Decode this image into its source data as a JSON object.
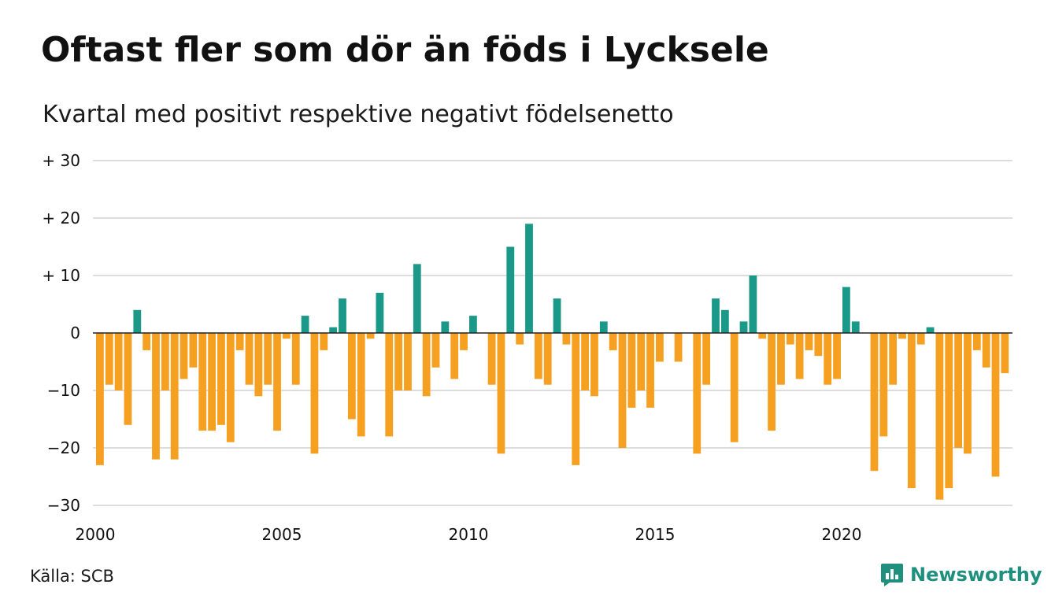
{
  "title": "Oftast fler som dör än föds i Lycksele",
  "subtitle": "Kvartal med positivt respektive negativt födelsenetto",
  "source": "Källa: SCB",
  "brand": {
    "name": "Newsworthy",
    "icon": "newsworthy-logo-icon",
    "color": "#1f8f7e"
  },
  "colors": {
    "positive": "#1a9988",
    "negative": "#f5a020",
    "grid": "#dddddd"
  },
  "chart_data": {
    "type": "bar",
    "x_start": 2000,
    "x_end": 2024.75,
    "quarters_per_year": 4,
    "values": [
      -23,
      -9,
      -10,
      -16,
      4,
      -3,
      -22,
      -10,
      -22,
      -8,
      -6,
      -17,
      -17,
      -16,
      -19,
      -3,
      -9,
      -11,
      -9,
      -17,
      -1,
      -9,
      3,
      -21,
      -3,
      1,
      6,
      -15,
      -18,
      -1,
      7,
      -18,
      -10,
      -10,
      12,
      -11,
      -6,
      2,
      -8,
      -3,
      3,
      0,
      -9,
      -21,
      15,
      -2,
      19,
      -8,
      -9,
      6,
      -2,
      -23,
      -10,
      -11,
      2,
      -3,
      -20,
      -13,
      -10,
      -13,
      -5,
      0,
      -5,
      0,
      -21,
      -9,
      6,
      4,
      -19,
      2,
      10,
      -1,
      -17,
      -9,
      -2,
      -8,
      -3,
      -4,
      -9,
      -8,
      8,
      2,
      0,
      -24,
      -18,
      -9,
      -1,
      -27,
      -2,
      1,
      -29,
      -27,
      -20,
      -21,
      -3,
      -6,
      -25,
      -7
    ],
    "y_ticks": [
      30,
      20,
      10,
      0,
      -10,
      -20,
      -30
    ],
    "y_tick_labels": [
      "+ 30",
      "+ 20",
      "+ 10",
      "0",
      "−10",
      "−20",
      "−30"
    ],
    "x_ticks": [
      2000,
      2005,
      2010,
      2015,
      2020
    ],
    "x_tick_labels": [
      "2000",
      "2005",
      "2010",
      "2015",
      "2020"
    ],
    "ylim": [
      -30,
      30
    ],
    "grid": true,
    "legend": "none"
  }
}
